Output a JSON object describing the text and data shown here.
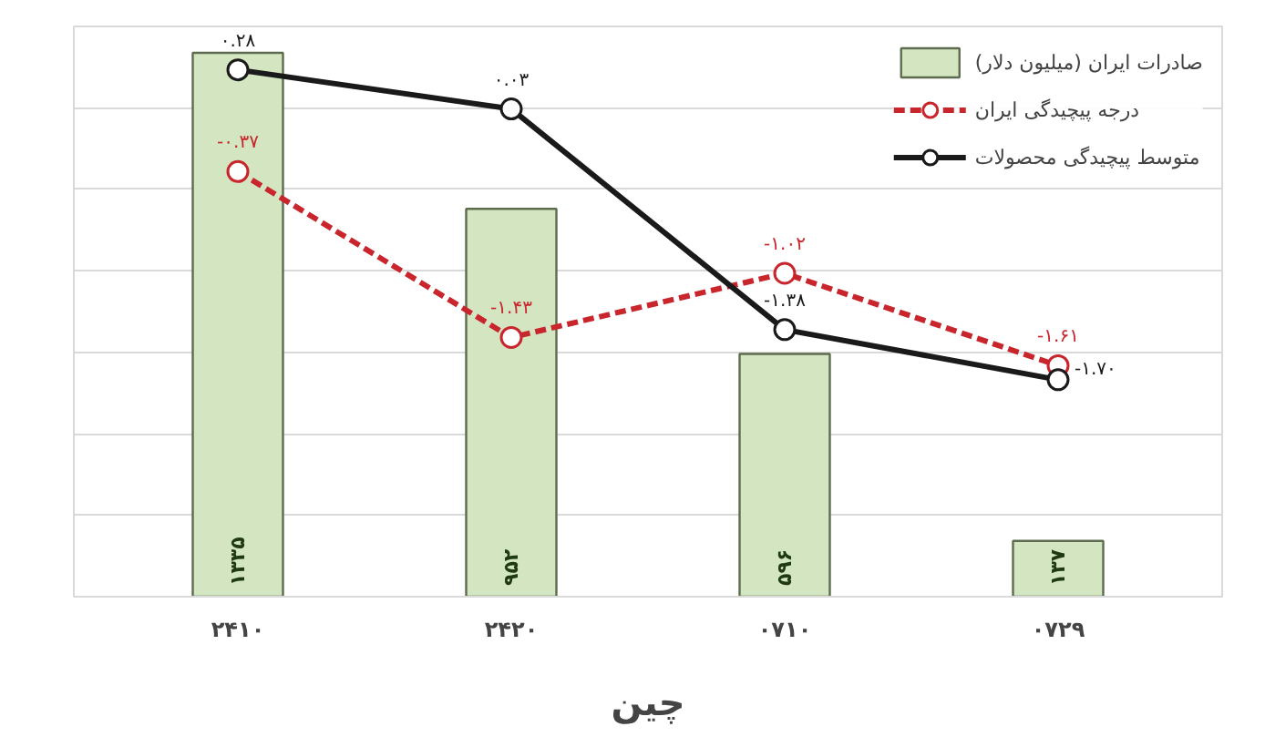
{
  "chart_data": {
    "type": "bar",
    "xlabel": "چین",
    "categories": [
      "۲۴۱۰",
      "۲۴۲۰",
      "۰۷۱۰",
      "۰۷۲۹"
    ],
    "series": [
      {
        "name": "صادرات ایران (میلیون دلار)",
        "color": "#d3e6c1",
        "values": [
          1335,
          952,
          596,
          137
        ],
        "value_labels": [
          "۱۳۳۵",
          "۹۵۲",
          "۵۹۶",
          "۱۳۷"
        ]
      },
      {
        "name": "درجه پیچیدگی ایران",
        "type": "line",
        "axis": "y2",
        "color": "#c8252c",
        "line_style": "dashed",
        "marker": "circle",
        "values": [
          -0.37,
          -1.43,
          -1.02,
          -1.61
        ],
        "value_labels": [
          "-۰.۳۷",
          "-۱.۴۳",
          "-۱.۰۲",
          "-۱.۶۱"
        ]
      },
      {
        "name": "متوسط پیچیدگی محصولات",
        "type": "line",
        "axis": "y2",
        "color": "#1a1a1a",
        "line_style": "solid",
        "marker": "circle",
        "values": [
          0.28,
          0.03,
          -1.38,
          -1.7
        ],
        "value_labels": [
          "۰.۲۸",
          "۰.۰۳",
          "-۱.۳۸",
          "-۱.۷۰"
        ]
      }
    ],
    "ylim": [
      0,
      1400
    ],
    "yticks": [
      {
        "value": 0,
        "label": null
      },
      {
        "value": 200,
        "label": null
      },
      {
        "value": 400,
        "label": null
      },
      {
        "value": 600,
        "label": null
      },
      {
        "value": 800,
        "label": null
      },
      {
        "value": 1000,
        "label": null
      },
      {
        "value": 1200,
        "label": null
      },
      {
        "value": 1400,
        "label": null
      }
    ],
    "grid": "y",
    "legend": "top right",
    "tick_labels": "x"
  }
}
